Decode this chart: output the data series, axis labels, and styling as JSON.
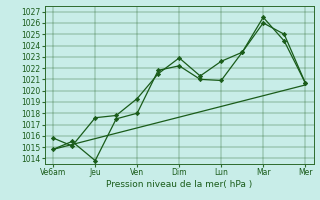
{
  "background_color": "#c8ede8",
  "grid_color": "#2d6a2d",
  "line_color": "#1a5c1a",
  "x_labels": [
    "Ve6am",
    "Jeu",
    "Ven",
    "Dim",
    "Lun",
    "Mar",
    "Mer"
  ],
  "x_positions": [
    0,
    1,
    2,
    3,
    4,
    5,
    6
  ],
  "ylim": [
    1013.5,
    1027.5
  ],
  "yticks": [
    1014,
    1015,
    1016,
    1017,
    1018,
    1019,
    1020,
    1021,
    1022,
    1023,
    1024,
    1025,
    1026,
    1027
  ],
  "xlabel": "Pression niveau de la mer( hPa )",
  "series": [
    {
      "x": [
        0,
        0.45,
        1.0,
        1.5,
        2.0,
        2.5,
        3.0,
        3.5,
        4.0,
        4.5,
        5.0,
        5.5,
        6.0
      ],
      "y": [
        1014.8,
        1015.5,
        1013.8,
        1017.5,
        1018.0,
        1021.8,
        1022.2,
        1021.0,
        1020.9,
        1023.4,
        1026.0,
        1025.0,
        1020.7
      ]
    },
    {
      "x": [
        0,
        0.45,
        1.0,
        1.5,
        2.0,
        2.5,
        3.0,
        3.5,
        4.0,
        4.5,
        5.0,
        5.5,
        6.0
      ],
      "y": [
        1015.8,
        1015.1,
        1017.6,
        1017.8,
        1019.3,
        1021.5,
        1022.9,
        1021.3,
        1022.6,
        1023.4,
        1026.5,
        1024.4,
        1020.7
      ]
    },
    {
      "x": [
        0,
        6.0
      ],
      "y": [
        1014.8,
        1020.5
      ]
    }
  ],
  "marker": "D",
  "marker_size": 2.2,
  "linewidth": 0.9,
  "tick_fontsize": 5.5,
  "xlabel_fontsize": 6.5
}
